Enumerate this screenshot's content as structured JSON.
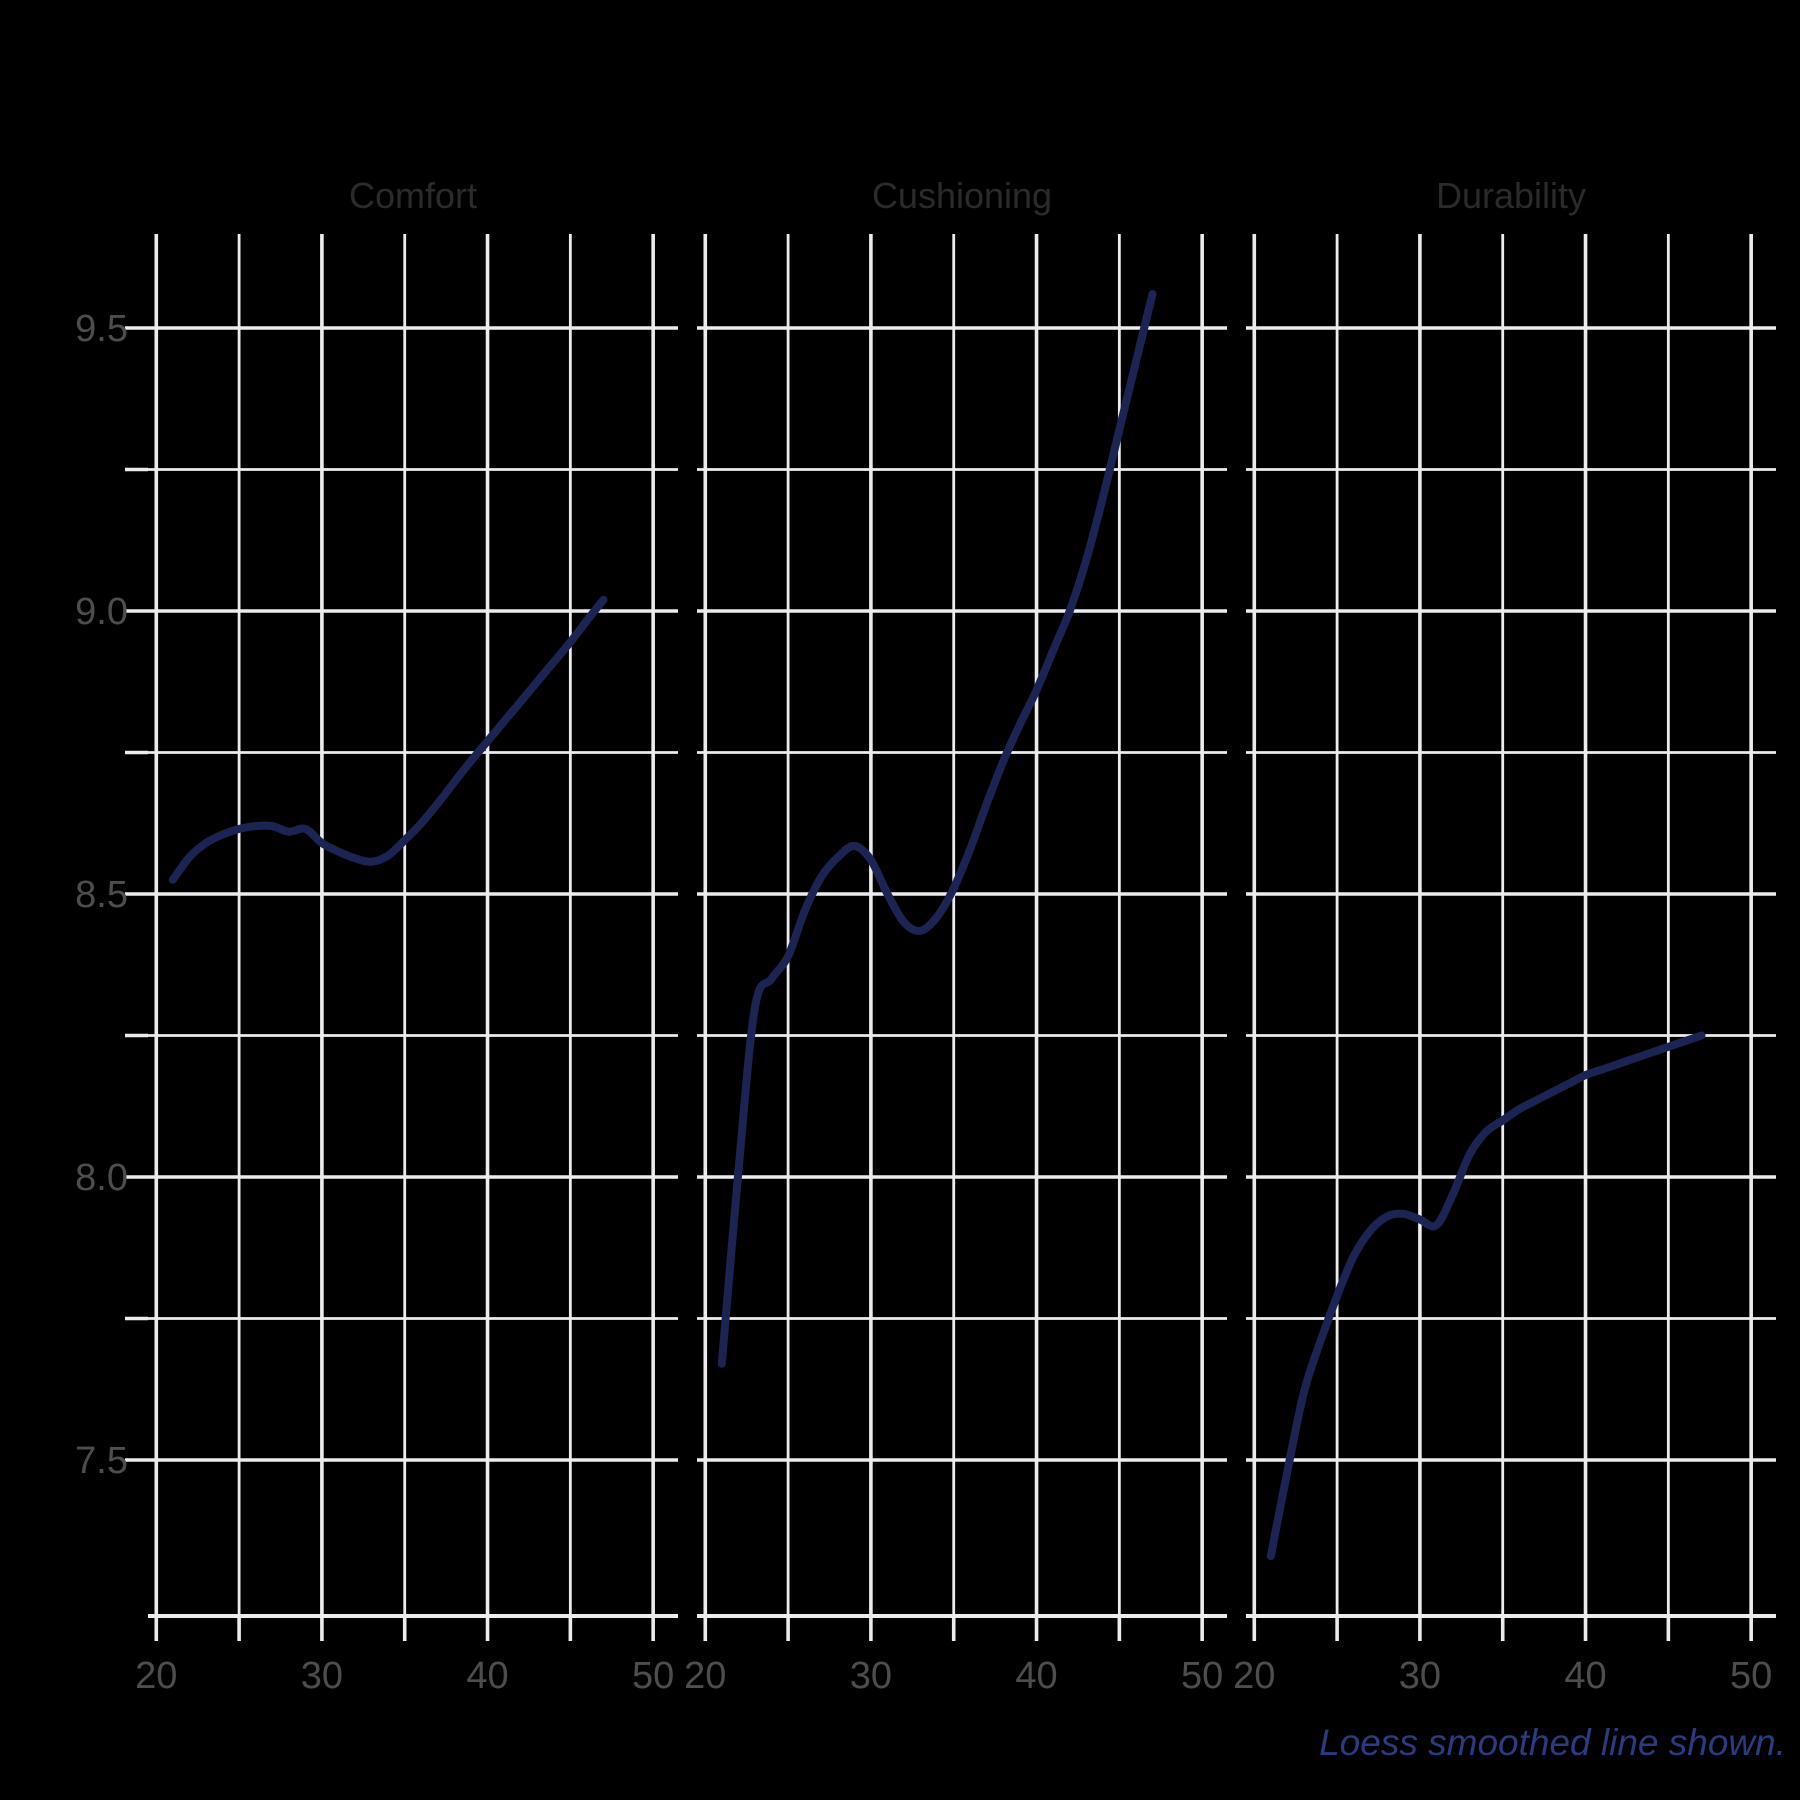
{
  "caption": {
    "text": "Loess smoothed line shown."
  },
  "colors": {
    "background": "#000000",
    "grid_major": "#ececec",
    "grid_minor": "#ececec",
    "axis_line": "#ececec",
    "tick_mark": "#ececec",
    "tick_label": "#4d4d4d",
    "facet_title": "#2b2b2b",
    "line": "#1b2453",
    "caption": "#2c3a82"
  },
  "chart_data": {
    "type": "line",
    "title": "",
    "xlabel": "",
    "ylabel": "",
    "caption": "Loess smoothed line shown.",
    "grid": true,
    "legend_position": "none",
    "x_range": [
      19.5,
      51.5
    ],
    "y_range": [
      7.22,
      9.67
    ],
    "x_ticks_major": [
      20,
      30,
      40,
      50
    ],
    "x_ticks_minor": [
      25,
      35,
      45
    ],
    "x_tick_labels": [
      "20",
      "30",
      "40",
      "50"
    ],
    "y_ticks_major": [
      7.5,
      8.0,
      8.5,
      9.0,
      9.5
    ],
    "y_ticks_minor": [
      7.75,
      8.25,
      8.75,
      9.25
    ],
    "y_tick_labels": [
      "7.5",
      "8.0",
      "8.5",
      "9.0",
      "9.5"
    ],
    "x": [
      21,
      22,
      23,
      24,
      25,
      26,
      27,
      28,
      29,
      30,
      31,
      32,
      33,
      34,
      35,
      36,
      37,
      38,
      39,
      40,
      41,
      42,
      43,
      44,
      45,
      46,
      47
    ],
    "series": [
      {
        "name": "Comfort",
        "values": [
          8.525,
          8.565,
          8.59,
          8.605,
          8.615,
          8.62,
          8.62,
          8.61,
          8.615,
          8.59,
          8.575,
          8.563,
          8.557,
          8.568,
          8.595,
          8.625,
          8.66,
          8.698,
          8.735,
          8.77,
          8.805,
          8.84,
          8.875,
          8.91,
          8.945,
          8.983,
          9.02
        ]
      },
      {
        "name": "Cushioning",
        "values": [
          7.67,
          8.01,
          8.3,
          8.35,
          8.39,
          8.47,
          8.53,
          8.565,
          8.585,
          8.56,
          8.5,
          8.45,
          8.435,
          8.46,
          8.51,
          8.58,
          8.66,
          8.735,
          8.8,
          8.86,
          8.93,
          9.0,
          9.09,
          9.2,
          9.32,
          9.44,
          9.56
        ]
      },
      {
        "name": "Durability",
        "values": [
          7.33,
          7.48,
          7.62,
          7.71,
          7.79,
          7.86,
          7.905,
          7.93,
          7.935,
          7.925,
          7.915,
          7.97,
          8.04,
          8.08,
          8.1,
          8.12,
          8.135,
          8.15,
          8.165,
          8.18,
          8.19,
          8.2,
          8.21,
          8.22,
          8.23,
          8.24,
          8.25
        ]
      }
    ]
  }
}
